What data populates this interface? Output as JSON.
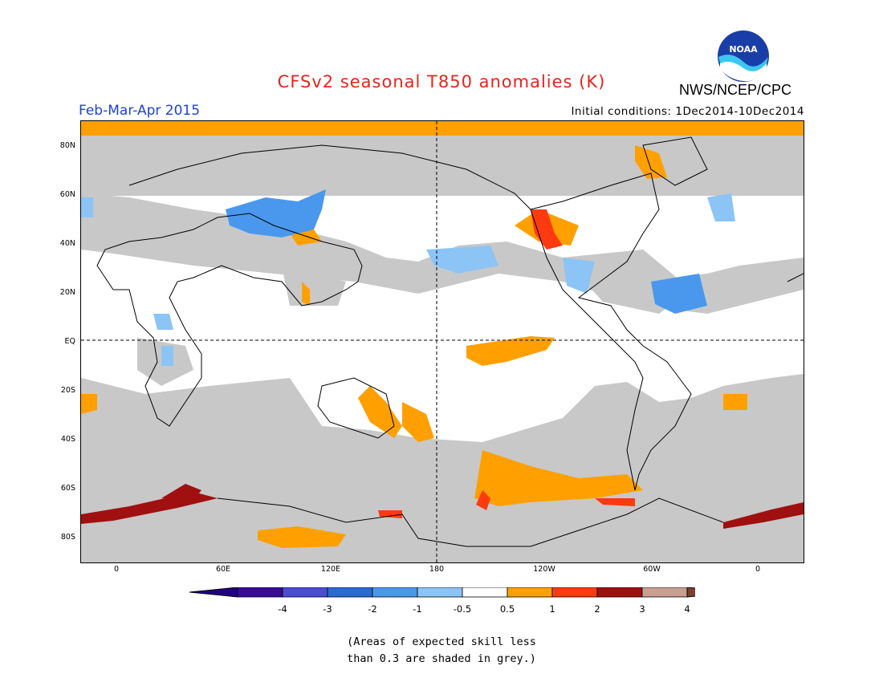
{
  "header": {
    "title": "CFSv2 seasonal T850 anomalies (K)",
    "season": "Feb-Mar-Apr 2015",
    "initial_conditions": "Initial conditions: 1Dec2014-10Dec2014",
    "org": "NWS/NCEP/CPC",
    "logo_text": "NOAA"
  },
  "map": {
    "lat_labels": [
      "80N",
      "60N",
      "40N",
      "20N",
      "EQ",
      "20S",
      "40S",
      "60S",
      "80S"
    ],
    "lon_labels": [
      "0",
      "60E",
      "120E",
      "180",
      "120W",
      "60W",
      "0"
    ]
  },
  "colorbar": {
    "labels": [
      "-4",
      "-3",
      "-2",
      "-1",
      "-0.5",
      "0.5",
      "1",
      "2",
      "3",
      "4"
    ],
    "colors": [
      "#3a0a9a",
      "#4a4cd8",
      "#2a6ad6",
      "#4a98ee",
      "#8cc4f6",
      "#ffffff",
      "#ffa000",
      "#ff3a10",
      "#a01010",
      "#c8a090"
    ],
    "end_low": "#200080",
    "end_high": "#7a4030"
  },
  "legend_note": {
    "line1": "(Areas of expected skill less",
    "line2": "than 0.3 are shaded in grey.)"
  },
  "colors": {
    "skill_grey": "#c8c8c8",
    "title_red": "#e8241c",
    "season_blue": "#1f3fd6"
  }
}
